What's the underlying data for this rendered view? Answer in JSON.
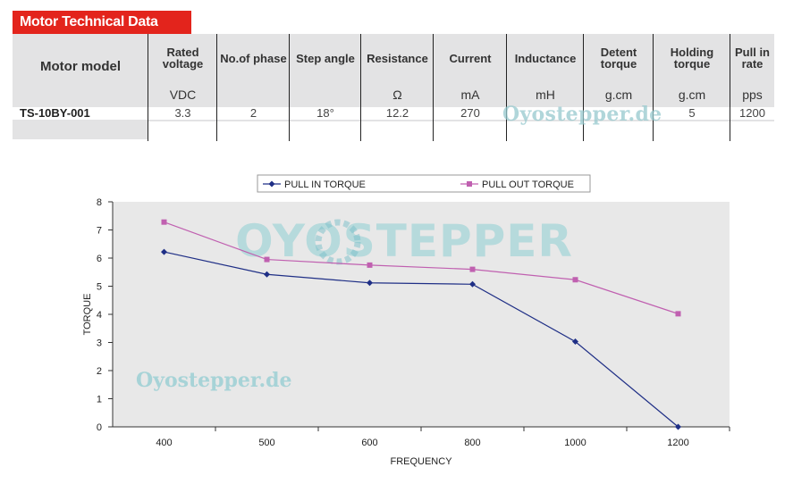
{
  "title": "Motor Technical Data",
  "table": {
    "model_header": "Motor model",
    "columns": [
      {
        "label": "Rated voltage",
        "unit": "VDC",
        "value": "3.3"
      },
      {
        "label": "No.of phase",
        "unit": "",
        "value": "2"
      },
      {
        "label": "Step angle",
        "unit": "",
        "value": "18°"
      },
      {
        "label": "Resistance",
        "unit": "Ω",
        "value": "12.2"
      },
      {
        "label": "Current",
        "unit": "mA",
        "value": "270"
      },
      {
        "label": "Inductance",
        "unit": "mH",
        "value": ""
      },
      {
        "label": "Detent torque",
        "unit": "g.cm",
        "value": ""
      },
      {
        "label": "Holding torque",
        "unit": "g.cm",
        "value": "5"
      },
      {
        "label": "Pull in rate",
        "unit": "pps",
        "value": "1200"
      }
    ],
    "model": "TS-10BY-001"
  },
  "watermarks": {
    "table": "Oyostepper.de",
    "chart_text": "Oyostepper.de",
    "logo": "OYOSTEPPER"
  },
  "chart_data": {
    "type": "line",
    "categories": [
      "400",
      "500",
      "600",
      "800",
      "1000",
      "1200"
    ],
    "series": [
      {
        "name": "PULL IN TORQUE",
        "color": "#1f2f86",
        "marker": "diamond",
        "values": [
          6.22,
          5.42,
          5.12,
          5.07,
          3.03,
          0.0
        ]
      },
      {
        "name": "PULL OUT TORQUE",
        "color": "#c060b0",
        "marker": "square",
        "values": [
          7.28,
          5.95,
          5.75,
          5.6,
          5.23,
          4.02
        ]
      }
    ],
    "xlabel": "FREQUENCY",
    "ylabel": "TORQUE",
    "ylim": [
      0,
      8
    ],
    "yticks": [
      "0",
      "1",
      "2",
      "3",
      "4",
      "5",
      "6",
      "7",
      "8"
    ],
    "grid": false,
    "legend_position": "top",
    "plot_background": "#e8e8e8"
  }
}
